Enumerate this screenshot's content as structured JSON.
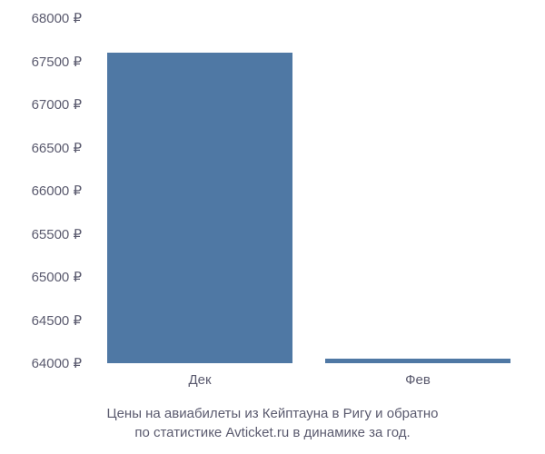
{
  "chart": {
    "type": "bar",
    "background_color": "#ffffff",
    "text_color": "#5a5a6e",
    "label_fontsize": 15,
    "caption_fontsize": 15,
    "currency_symbol": "₽",
    "y_axis": {
      "min": 64000,
      "max": 68000,
      "tick_step": 500,
      "ticks": [
        {
          "value": 64000,
          "label": "64000 ₽"
        },
        {
          "value": 64500,
          "label": "64500 ₽"
        },
        {
          "value": 65000,
          "label": "65000 ₽"
        },
        {
          "value": 65500,
          "label": "65500 ₽"
        },
        {
          "value": 66000,
          "label": "66000 ₽"
        },
        {
          "value": 66500,
          "label": "66500 ₽"
        },
        {
          "value": 67000,
          "label": "67000 ₽"
        },
        {
          "value": 67500,
          "label": "67500 ₽"
        },
        {
          "value": 68000,
          "label": "68000 ₽"
        }
      ]
    },
    "x_axis": {
      "categories": [
        "Дек",
        "Фев"
      ]
    },
    "series": [
      {
        "category": "Дек",
        "value": 67600,
        "color": "#4f78a4"
      },
      {
        "category": "Фев",
        "value": 64050,
        "color": "#4f78a4"
      }
    ],
    "bar_width_ratio": 0.85,
    "caption_line1": "Цены на авиабилеты из Кейптауна в Ригу и обратно",
    "caption_line2": "по статистике Avticket.ru в динамике за год."
  }
}
